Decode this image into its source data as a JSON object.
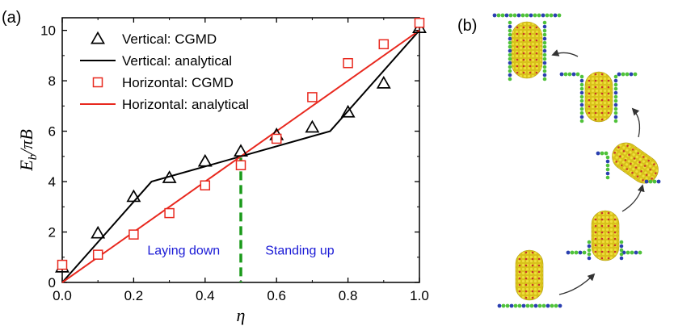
{
  "panel_a_label": "(a)",
  "panel_b_label": "(b)",
  "chart_data": {
    "type": "line",
    "xlabel": "η",
    "ylabel": "Eb/πB",
    "xlim": [
      0.0,
      1.0
    ],
    "ylim": [
      0,
      10.5
    ],
    "x_ticks": [
      "0.0",
      "0.2",
      "0.4",
      "0.6",
      "0.8",
      "1.0"
    ],
    "y_ticks": [
      "0",
      "2",
      "4",
      "6",
      "8",
      "10"
    ],
    "grid": false,
    "legend_position": "top-left",
    "series": [
      {
        "name": "Vertical: CGMD",
        "kind": "marker",
        "marker": "triangle",
        "color": "#000000",
        "x": [
          0.0,
          0.1,
          0.2,
          0.3,
          0.4,
          0.5,
          0.6,
          0.7,
          0.8,
          0.9,
          1.0
        ],
        "y": [
          0.6,
          1.95,
          3.4,
          4.15,
          4.8,
          5.2,
          5.85,
          6.15,
          6.75,
          7.9,
          10.1
        ]
      },
      {
        "name": "Vertical: analytical",
        "kind": "line",
        "color": "#000000",
        "x": [
          0.0,
          0.25,
          0.75,
          1.0
        ],
        "y": [
          0.0,
          4.0,
          6.0,
          10.0
        ]
      },
      {
        "name": "Horizontal: CGMD",
        "kind": "marker",
        "marker": "square",
        "color": "#e8281e",
        "x": [
          0.0,
          0.1,
          0.2,
          0.3,
          0.4,
          0.5,
          0.6,
          0.7,
          0.8,
          0.9,
          1.0
        ],
        "y": [
          0.7,
          1.1,
          1.9,
          2.75,
          3.85,
          4.65,
          5.7,
          7.35,
          8.7,
          9.45,
          10.3
        ]
      },
      {
        "name": "Horizontal: analytical",
        "kind": "line",
        "color": "#e8281e",
        "x": [
          0.0,
          1.0
        ],
        "y": [
          0.0,
          10.0
        ]
      }
    ],
    "divider": {
      "x": 0.5,
      "color": "#1a9a1a"
    },
    "annotations": [
      {
        "text": "Laying down",
        "x": 0.34,
        "y": 1.1
      },
      {
        "text": "Standing up",
        "x": 0.665,
        "y": 1.1
      }
    ]
  },
  "diagram": {
    "arrow_color": "#333333",
    "stages": [
      {
        "name": "stage-1",
        "tilt": 0
      },
      {
        "name": "stage-2",
        "tilt": 0
      },
      {
        "name": "stage-3",
        "tilt": -40
      },
      {
        "name": "stage-4",
        "tilt": 0
      },
      {
        "name": "stage-5",
        "tilt": 0
      }
    ]
  }
}
